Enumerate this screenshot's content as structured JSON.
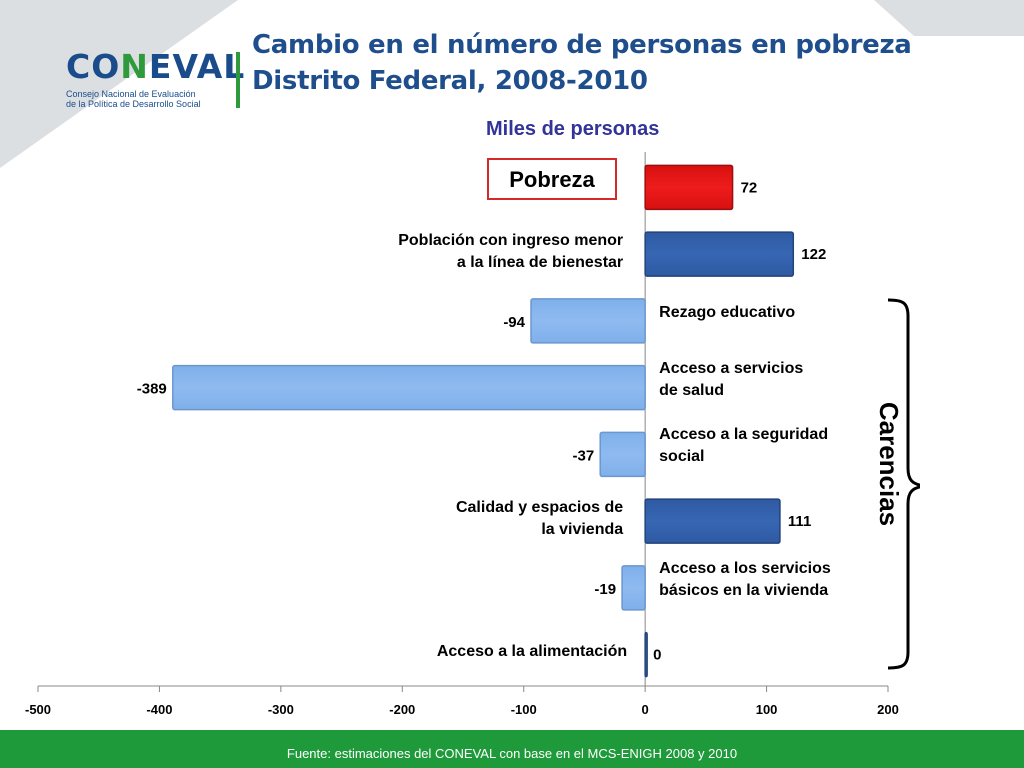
{
  "logo": {
    "word_prefix": "CO",
    "word_accent": "N",
    "word_suffix": "EVAL",
    "line1": "Consejo Nacional de Evaluación",
    "line2": "de la Política de Desarrollo Social"
  },
  "header": {
    "title_line1": "Cambio en el número de personas en pobreza",
    "title_line2": "Distrito Federal, 2008-2010"
  },
  "highlight_label": "Pobreza",
  "group_label": "Carencias",
  "source": "Fuente: estimaciones del CONEVAL con base en el MCS-ENIGH 2008 y 2010",
  "colors": {
    "pobreza": "#ee1c1c",
    "positive": "#3766b3",
    "negative": "#8fbaf0",
    "brand_blue": "#1f4e8c",
    "brand_green": "#1e9a3a"
  },
  "chart_data": {
    "type": "bar",
    "orientation": "horizontal",
    "title": "Miles de personas",
    "xlim": [
      -500,
      200
    ],
    "xticks": [
      -500,
      -400,
      -300,
      -200,
      -100,
      0,
      100,
      200
    ],
    "categories": [
      "Pobreza",
      "Población con ingreso menor a la línea de bienestar",
      "Rezago educativo",
      "Acceso a servicios de salud",
      "Acceso a la seguridad social",
      "Calidad y espacios de la vivienda",
      "Acceso a los servicios básicos en la vivienda",
      "Acceso a la alimentación"
    ],
    "category_display": [
      "",
      "Población con ingreso menor\na la línea de bienestar",
      "Rezago educativo",
      "Acceso a servicios\n de salud",
      "Acceso a  la seguridad\nsocial",
      "Calidad y espacios de\nla vivienda",
      "Acceso a los servicios\nbásicos en la vivienda",
      "Acceso a la alimentación"
    ],
    "values": [
      72,
      122,
      -94,
      -389,
      -37,
      111,
      -19,
      0
    ],
    "value_labels": [
      "72",
      "122",
      "-94",
      "-389",
      "-37",
      "111",
      "-19",
      "0"
    ]
  }
}
